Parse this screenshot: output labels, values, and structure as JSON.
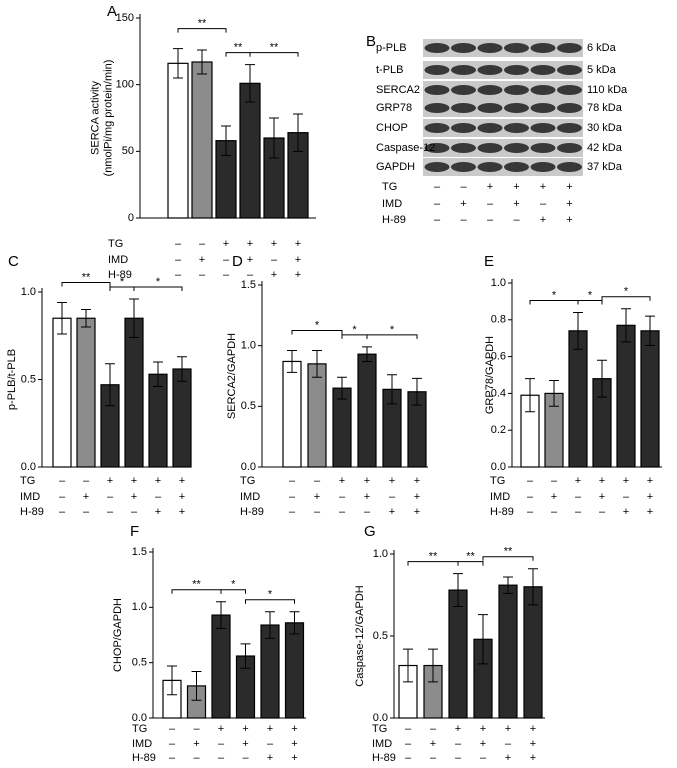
{
  "chart_data": [
    {
      "type": "bar",
      "panel": "A",
      "ylabel": [
        "SERCA activity",
        "(nmolPi/mg protein/min)"
      ],
      "values": [
        116,
        117,
        58,
        101,
        60,
        64
      ],
      "errors": [
        11,
        9,
        11,
        14,
        15,
        14
      ],
      "colors": [
        "#ffffff",
        "#8c8c8c",
        "#2b2b2b",
        "#2b2b2b",
        "#2b2b2b",
        "#2b2b2b"
      ],
      "ylim": [
        0,
        150
      ],
      "yticks": [
        0,
        50,
        100,
        150
      ],
      "comparisons": [
        {
          "groups": [
            1,
            3
          ],
          "label": "**"
        },
        {
          "groups": [
            3,
            4
          ],
          "label": "**"
        },
        {
          "groups": [
            4,
            6
          ],
          "label": "**"
        }
      ],
      "treatments": [
        {
          "name": "TG",
          "signs": [
            "–",
            "–",
            "+",
            "+",
            "+",
            "+"
          ]
        },
        {
          "name": "IMD",
          "signs": [
            "–",
            "+",
            "–",
            "+",
            "–",
            "+"
          ]
        },
        {
          "name": "H-89",
          "signs": [
            "–",
            "–",
            "–",
            "–",
            "+",
            "+"
          ]
        }
      ]
    },
    {
      "type": "blot",
      "panel": "B",
      "proteins": [
        {
          "name": "p-PLB",
          "size": "6 kDa"
        },
        {
          "name": "t-PLB",
          "size": "5 kDa"
        },
        {
          "name": "SERCA2",
          "size": "110 kDa"
        },
        {
          "name": "GRP78",
          "size": "78 kDa"
        },
        {
          "name": "CHOP",
          "size": "30 kDa"
        },
        {
          "name": "Caspase-12",
          "size": "42 kDa"
        },
        {
          "name": "GAPDH",
          "size": "37 kDa"
        }
      ],
      "treatments": [
        {
          "name": "TG",
          "signs": [
            "–",
            "–",
            "+",
            "+",
            "+",
            "+"
          ]
        },
        {
          "name": "IMD",
          "signs": [
            "–",
            "+",
            "–",
            "+",
            "–",
            "+"
          ]
        },
        {
          "name": "H-89",
          "signs": [
            "–",
            "–",
            "–",
            "–",
            "+",
            "+"
          ]
        }
      ]
    },
    {
      "type": "bar",
      "panel": "C",
      "ylabel": [
        "p-PLB/t-PLB"
      ],
      "values": [
        0.85,
        0.85,
        0.47,
        0.85,
        0.53,
        0.56
      ],
      "errors": [
        0.09,
        0.05,
        0.12,
        0.11,
        0.07,
        0.07
      ],
      "colors": [
        "#ffffff",
        "#8c8c8c",
        "#2b2b2b",
        "#2b2b2b",
        "#2b2b2b",
        "#2b2b2b"
      ],
      "ylim": [
        0,
        1
      ],
      "yticks": [
        {
          "value": 0,
          "label": "0.0"
        },
        0.5,
        {
          "value": 1,
          "label": "1.0"
        }
      ],
      "comparisons": [
        {
          "groups": [
            1,
            3
          ],
          "label": "**"
        },
        {
          "groups": [
            3,
            4
          ],
          "label": "*"
        },
        {
          "groups": [
            4,
            6
          ],
          "label": "*"
        }
      ],
      "treatments": [
        {
          "name": "TG",
          "signs": [
            "–",
            "–",
            "+",
            "+",
            "+",
            "+"
          ]
        },
        {
          "name": "IMD",
          "signs": [
            "–",
            "+",
            "–",
            "+",
            "–",
            "+"
          ]
        },
        {
          "name": "H-89",
          "signs": [
            "–",
            "–",
            "–",
            "–",
            "+",
            "+"
          ]
        }
      ]
    },
    {
      "type": "bar",
      "panel": "D",
      "ylabel": [
        "SERCA2/GAPDH"
      ],
      "values": [
        0.87,
        0.85,
        0.65,
        0.93,
        0.64,
        0.62
      ],
      "errors": [
        0.09,
        0.11,
        0.09,
        0.06,
        0.12,
        0.11
      ],
      "colors": [
        "#ffffff",
        "#8c8c8c",
        "#2b2b2b",
        "#2b2b2b",
        "#2b2b2b",
        "#2b2b2b"
      ],
      "ylim": [
        0,
        1.5
      ],
      "yticks": [
        {
          "value": 0,
          "label": "0.0"
        },
        0.5,
        {
          "value": 1,
          "label": "1.0"
        },
        1.5
      ],
      "comparisons": [
        {
          "groups": [
            1,
            3
          ],
          "label": "*"
        },
        {
          "groups": [
            3,
            4
          ],
          "label": "*"
        },
        {
          "groups": [
            4,
            6
          ],
          "label": "*"
        }
      ],
      "treatments": [
        {
          "name": "TG",
          "signs": [
            "–",
            "–",
            "+",
            "+",
            "+",
            "+"
          ]
        },
        {
          "name": "IMD",
          "signs": [
            "–",
            "+",
            "–",
            "+",
            "–",
            "+"
          ]
        },
        {
          "name": "H-89",
          "signs": [
            "–",
            "–",
            "–",
            "–",
            "+",
            "+"
          ]
        }
      ]
    },
    {
      "type": "bar",
      "panel": "E",
      "ylabel": [
        "GRP78/GAPDH"
      ],
      "values": [
        0.39,
        0.4,
        0.74,
        0.48,
        0.77,
        0.74
      ],
      "errors": [
        0.09,
        0.07,
        0.1,
        0.1,
        0.09,
        0.08
      ],
      "colors": [
        "#ffffff",
        "#8c8c8c",
        "#2b2b2b",
        "#2b2b2b",
        "#2b2b2b",
        "#2b2b2b"
      ],
      "ylim": [
        0,
        1
      ],
      "yticks": [
        {
          "value": 0,
          "label": "0.0"
        },
        0.2,
        0.4,
        0.6,
        0.8,
        {
          "value": 1,
          "label": "1.0"
        }
      ],
      "comparisons": [
        {
          "groups": [
            1,
            3
          ],
          "label": "*"
        },
        {
          "groups": [
            3,
            4
          ],
          "label": "*"
        },
        {
          "groups": [
            4,
            6
          ],
          "label": "*"
        }
      ],
      "treatments": [
        {
          "name": "TG",
          "signs": [
            "–",
            "–",
            "+",
            "+",
            "+",
            "+"
          ]
        },
        {
          "name": "IMD",
          "signs": [
            "–",
            "+",
            "–",
            "+",
            "–",
            "+"
          ]
        },
        {
          "name": "H-89",
          "signs": [
            "–",
            "–",
            "–",
            "–",
            "+",
            "+"
          ]
        }
      ]
    },
    {
      "type": "bar",
      "panel": "F",
      "ylabel": [
        "CHOP/GAPDH"
      ],
      "values": [
        0.34,
        0.29,
        0.93,
        0.56,
        0.84,
        0.86
      ],
      "errors": [
        0.13,
        0.13,
        0.12,
        0.11,
        0.12,
        0.1
      ],
      "colors": [
        "#ffffff",
        "#8c8c8c",
        "#2b2b2b",
        "#2b2b2b",
        "#2b2b2b",
        "#2b2b2b"
      ],
      "ylim": [
        0,
        1.5
      ],
      "yticks": [
        {
          "value": 0,
          "label": "0.0"
        },
        0.5,
        {
          "value": 1,
          "label": "1.0"
        },
        1.5
      ],
      "comparisons": [
        {
          "groups": [
            1,
            3
          ],
          "label": "**"
        },
        {
          "groups": [
            3,
            4
          ],
          "label": "*"
        },
        {
          "groups": [
            4,
            6
          ],
          "label": "*"
        }
      ],
      "treatments": [
        {
          "name": "TG",
          "signs": [
            "–",
            "–",
            "+",
            "+",
            "+",
            "+"
          ]
        },
        {
          "name": "IMD",
          "signs": [
            "–",
            "+",
            "–",
            "+",
            "–",
            "+"
          ]
        },
        {
          "name": "H-89",
          "signs": [
            "–",
            "–",
            "–",
            "–",
            "+",
            "+"
          ]
        }
      ]
    },
    {
      "type": "bar",
      "panel": "G",
      "ylabel": [
        "Caspase-12/GAPDH"
      ],
      "values": [
        0.32,
        0.32,
        0.78,
        0.48,
        0.81,
        0.8
      ],
      "errors": [
        0.1,
        0.1,
        0.1,
        0.15,
        0.05,
        0.11
      ],
      "colors": [
        "#ffffff",
        "#8c8c8c",
        "#2b2b2b",
        "#2b2b2b",
        "#2b2b2b",
        "#2b2b2b"
      ],
      "ylim": [
        0,
        1
      ],
      "yticks": [
        {
          "value": 0,
          "label": "0.0"
        },
        0.5,
        {
          "value": 1,
          "label": "1.0"
        }
      ],
      "comparisons": [
        {
          "groups": [
            1,
            3
          ],
          "label": "**"
        },
        {
          "groups": [
            3,
            4
          ],
          "label": "**"
        },
        {
          "groups": [
            4,
            6
          ],
          "label": "**"
        }
      ],
      "treatments": [
        {
          "name": "TG",
          "signs": [
            "–",
            "–",
            "+",
            "+",
            "+",
            "+"
          ]
        },
        {
          "name": "IMD",
          "signs": [
            "–",
            "+",
            "–",
            "+",
            "–",
            "+"
          ]
        },
        {
          "name": "H-89",
          "signs": [
            "–",
            "–",
            "–",
            "–",
            "+",
            "+"
          ]
        }
      ]
    }
  ]
}
